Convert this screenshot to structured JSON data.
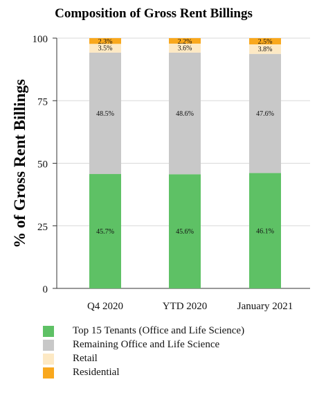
{
  "chart_data": {
    "type": "bar",
    "stacked": true,
    "title": "Composition of Gross Rent Billings",
    "ylabel": "% of Gross Rent Billings",
    "xlabel": "",
    "ylim": [
      0,
      100
    ],
    "yticks": [
      0,
      25,
      50,
      75,
      100
    ],
    "grid": true,
    "legend_position": "bottom",
    "categories": [
      "Q4 2020",
      "YTD 2020",
      "January 2021"
    ],
    "series": [
      {
        "name": "Top 15 Tenants (Office and Life Science)",
        "color": "#5ec165",
        "values": [
          45.7,
          45.6,
          46.1
        ],
        "labels": [
          "45.7%",
          "45.6%",
          "46.1%"
        ]
      },
      {
        "name": "Remaining Office and Life Science",
        "color": "#c8c8c8",
        "values": [
          48.5,
          48.6,
          47.6
        ],
        "labels": [
          "48.5%",
          "48.6%",
          "47.6%"
        ]
      },
      {
        "name": "Retail",
        "color": "#fde9c4",
        "values": [
          3.5,
          3.6,
          3.8
        ],
        "labels": [
          "3.5%",
          "3.6%",
          "3.8%"
        ]
      },
      {
        "name": "Residential",
        "color": "#f9a81d",
        "values": [
          2.3,
          2.2,
          2.5
        ],
        "labels": [
          "2.3%",
          "2.2%",
          "2.5%"
        ]
      }
    ]
  }
}
